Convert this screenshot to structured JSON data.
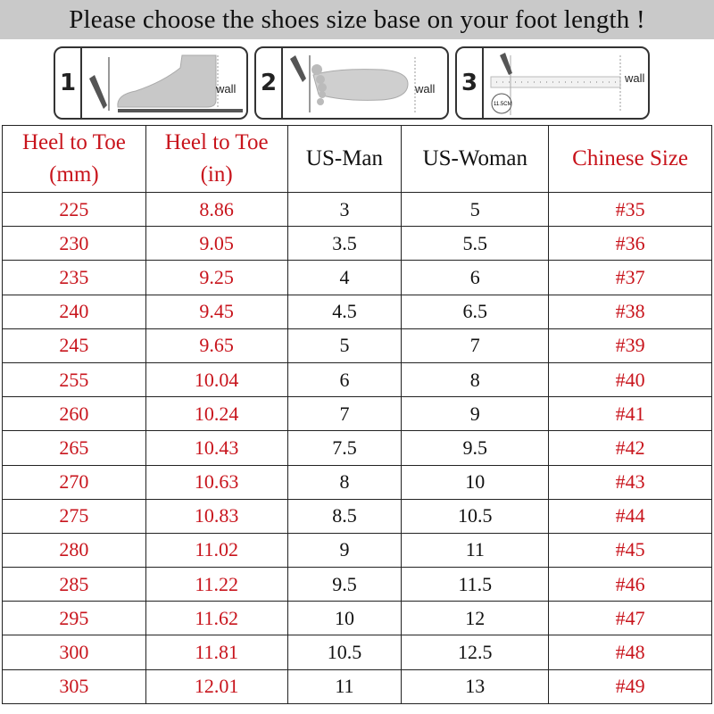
{
  "title": "Please choose the shoes size base on your foot length !",
  "steps": [
    {
      "number": "1",
      "wall_label": "wall",
      "icon": "foot-side-against-wall-icon"
    },
    {
      "number": "2",
      "wall_label": "wall",
      "icon": "foot-top-against-wall-icon"
    },
    {
      "number": "3",
      "wall_label": "wall",
      "icon": "ruler-measure-icon",
      "measure_label": "11.5CM"
    }
  ],
  "table": {
    "headers": [
      {
        "line1": "Heel to Toe",
        "line2": "(mm)",
        "color": "#c8141c"
      },
      {
        "line1": "Heel to Toe",
        "line2": "(in)",
        "color": "#c8141c"
      },
      {
        "line1": "US-Man",
        "line2": "",
        "color": "#111111"
      },
      {
        "line1": "US-Woman",
        "line2": "",
        "color": "#111111"
      },
      {
        "line1": "Chinese Size",
        "line2": "",
        "color": "#c8141c"
      }
    ],
    "rows": [
      [
        "225",
        "8.86",
        "3",
        "5",
        "#35"
      ],
      [
        "230",
        "9.05",
        "3.5",
        "5.5",
        "#36"
      ],
      [
        "235",
        "9.25",
        "4",
        "6",
        "#37"
      ],
      [
        "240",
        "9.45",
        "4.5",
        "6.5",
        "#38"
      ],
      [
        "245",
        "9.65",
        "5",
        "7",
        "#39"
      ],
      [
        "255",
        "10.04",
        "6",
        "8",
        "#40"
      ],
      [
        "260",
        "10.24",
        "7",
        "9",
        "#41"
      ],
      [
        "265",
        "10.43",
        "7.5",
        "9.5",
        "#42"
      ],
      [
        "270",
        "10.63",
        "8",
        "10",
        "#43"
      ],
      [
        "275",
        "10.83",
        "8.5",
        "10.5",
        "#44"
      ],
      [
        "280",
        "11.02",
        "9",
        "11",
        "#45"
      ],
      [
        "285",
        "11.22",
        "9.5",
        "11.5",
        "#46"
      ],
      [
        "295",
        "11.62",
        "10",
        "12",
        "#47"
      ],
      [
        "300",
        "11.81",
        "10.5",
        "12.5",
        "#48"
      ],
      [
        "305",
        "12.01",
        "11",
        "13",
        "#49"
      ]
    ]
  }
}
